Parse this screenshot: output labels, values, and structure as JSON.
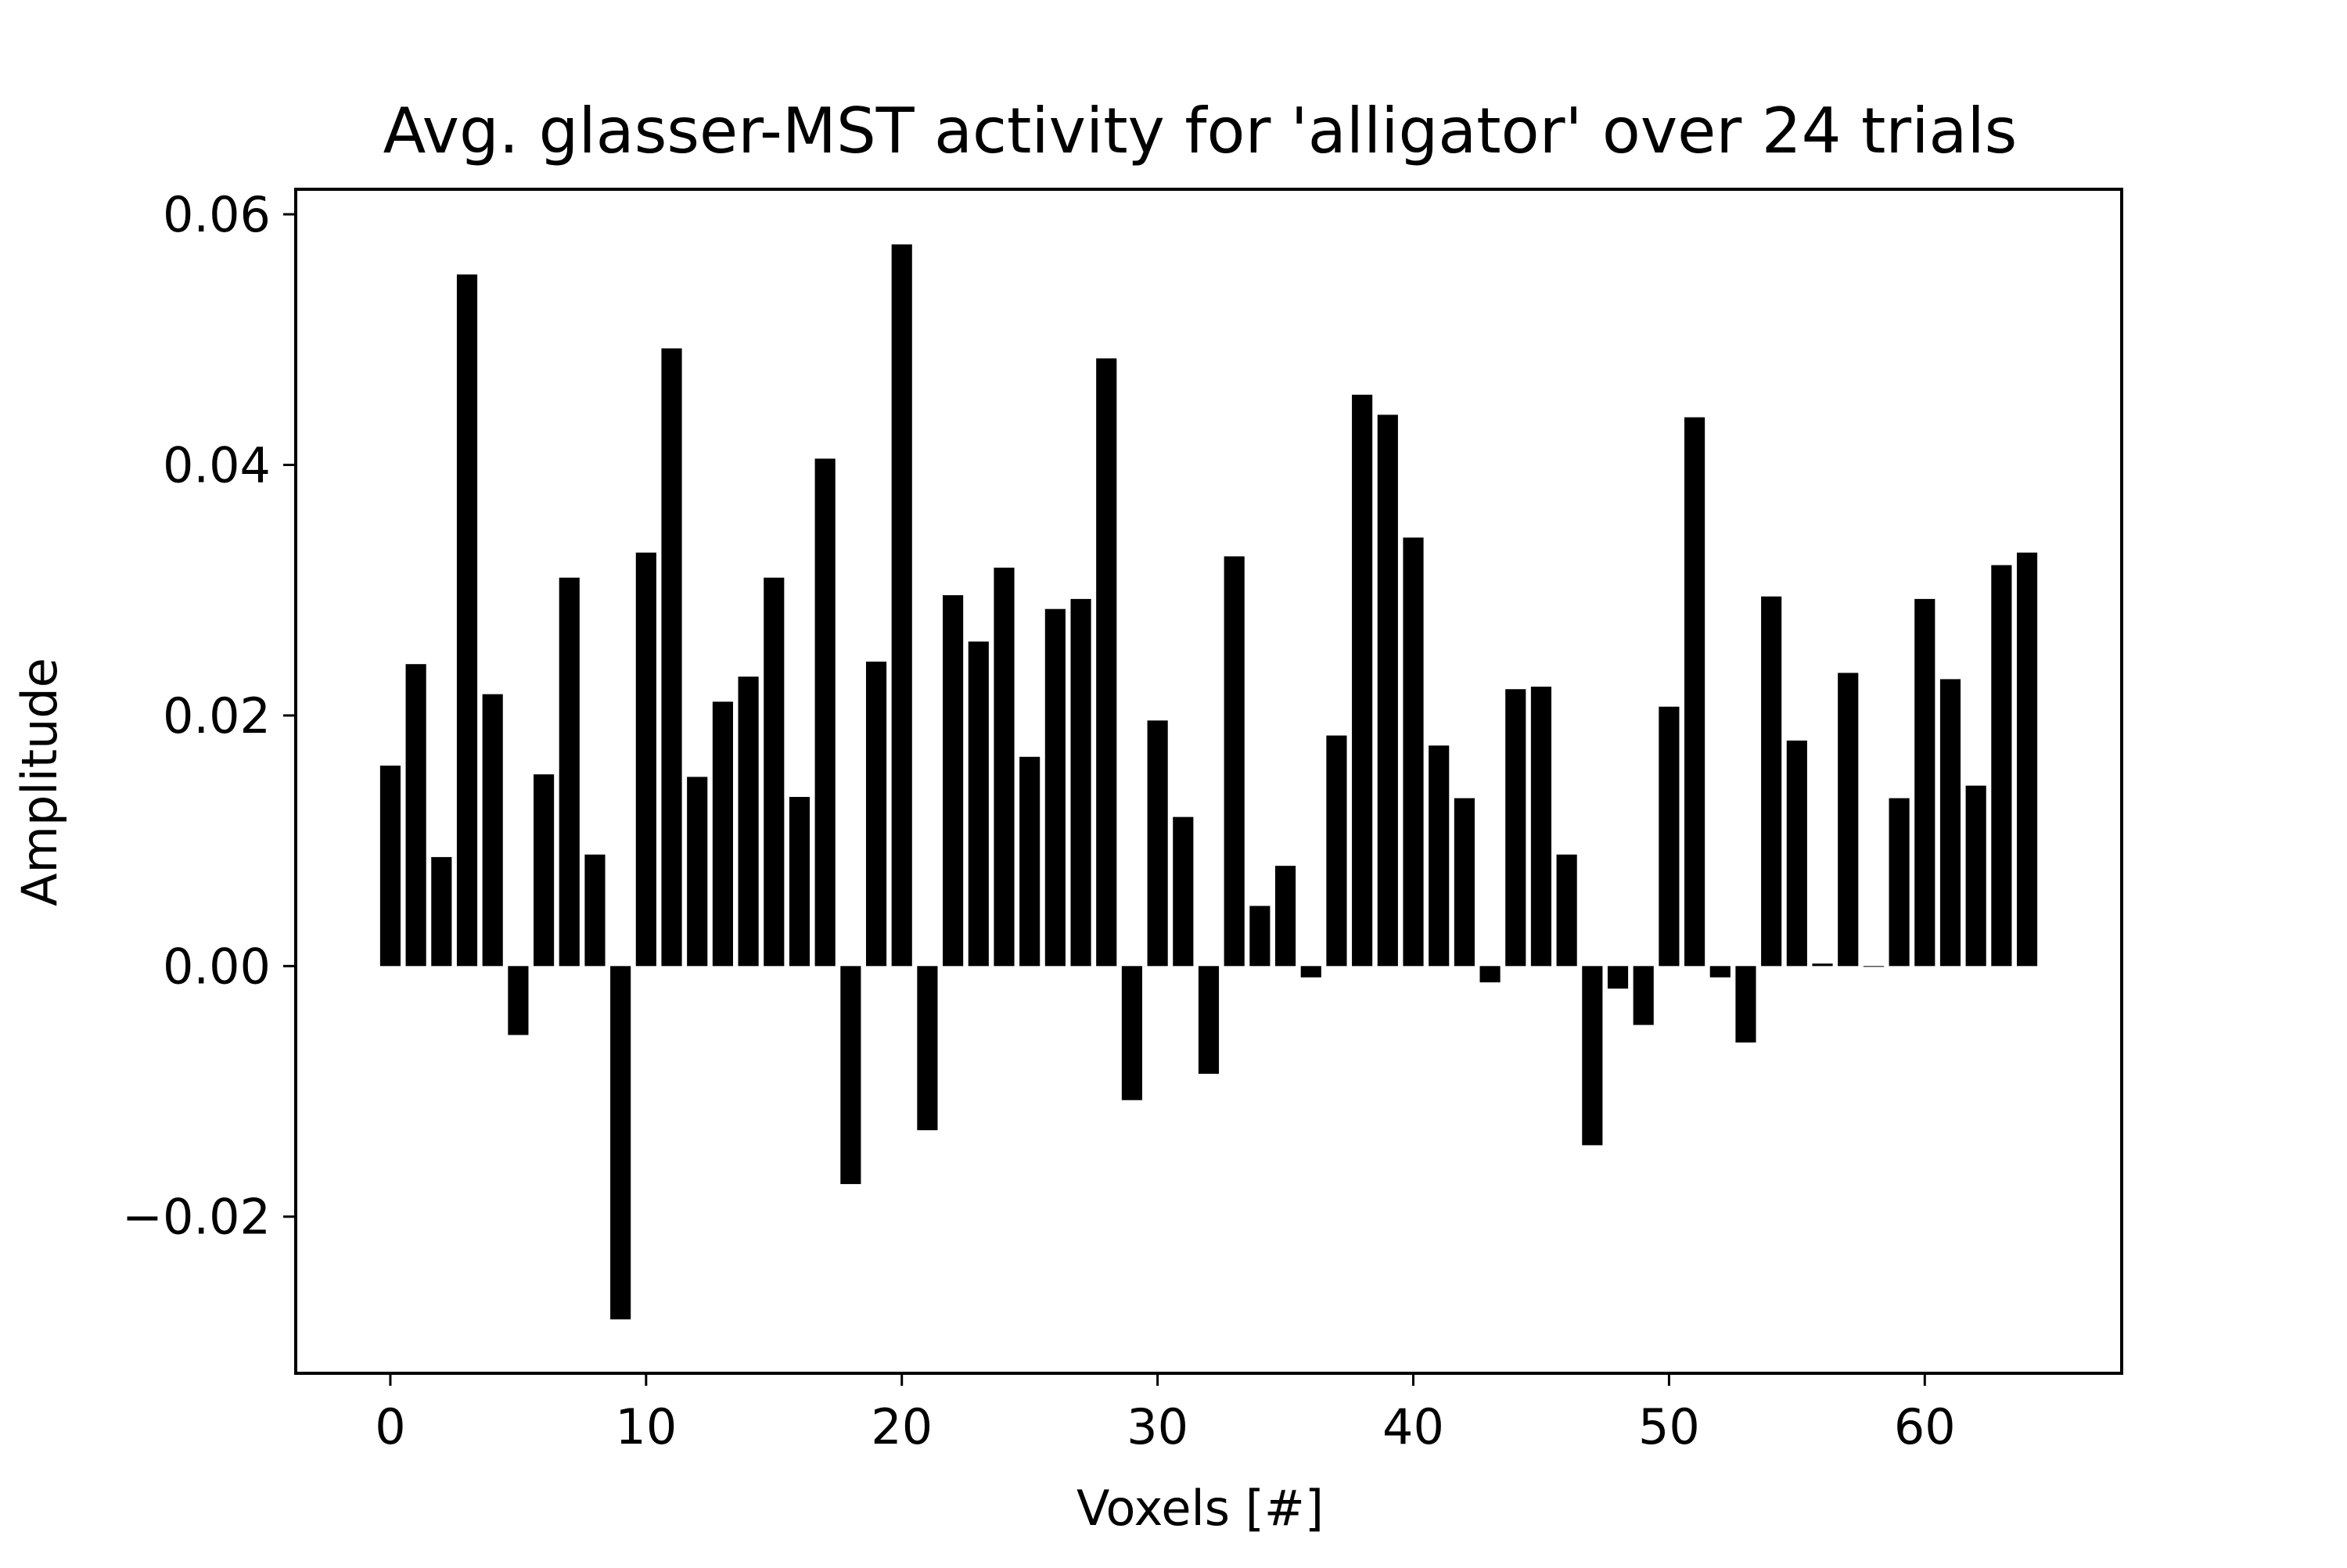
{
  "colors": {
    "bar": "#000000",
    "axes": "#000000",
    "background": "#ffffff"
  },
  "chart_data": {
    "type": "bar",
    "title": "Avg. glasser-MST activity for 'alligator' over 24 trials",
    "xlabel": "Voxels [#]",
    "ylabel": "Amplitude",
    "xlim": [
      -3.7,
      67.7
    ],
    "ylim": [
      -0.0325,
      0.062
    ],
    "grid": false,
    "legend": "none",
    "xticks": [
      0,
      10,
      20,
      30,
      40,
      50,
      60
    ],
    "xtick_labels": [
      "0",
      "10",
      "20",
      "30",
      "40",
      "50",
      "60"
    ],
    "yticks": [
      -0.02,
      0.0,
      0.02,
      0.04,
      0.06
    ],
    "ytick_labels": [
      "−0.02",
      "0.00",
      "0.02",
      "0.04",
      "0.06"
    ],
    "x": [
      0,
      1,
      2,
      3,
      4,
      5,
      6,
      7,
      8,
      9,
      10,
      11,
      12,
      13,
      14,
      15,
      16,
      17,
      18,
      19,
      20,
      21,
      22,
      23,
      24,
      25,
      26,
      27,
      28,
      29,
      30,
      31,
      32,
      33,
      34,
      35,
      36,
      37,
      38,
      39,
      40,
      41,
      42,
      43,
      44,
      45,
      46,
      47,
      48,
      49,
      50,
      51,
      52,
      53,
      54,
      55,
      56,
      57,
      58,
      59,
      60,
      61,
      62,
      63,
      64
    ],
    "values": [
      0.016,
      0.0241,
      0.0087,
      0.0552,
      0.0217,
      -0.0055,
      0.0153,
      0.031,
      0.0089,
      -0.0282,
      0.033,
      0.0493,
      0.0151,
      0.0211,
      0.0231,
      0.031,
      0.0135,
      0.0405,
      -0.0174,
      0.0243,
      0.0576,
      -0.0131,
      0.0296,
      0.0259,
      0.0318,
      0.0167,
      0.0285,
      0.0293,
      0.0485,
      -0.0107,
      0.0196,
      0.0119,
      -0.0086,
      0.0327,
      0.0048,
      0.008,
      -0.0009,
      0.0184,
      0.0456,
      0.044,
      0.0342,
      0.0176,
      0.0134,
      -0.0013,
      0.0221,
      0.0223,
      0.0089,
      -0.0143,
      -0.0018,
      -0.0047,
      0.0207,
      0.0438,
      -0.0009,
      -0.0061,
      0.0295,
      0.018,
      0.0002,
      0.0234,
      0.0,
      0.0134,
      0.0293,
      0.0229,
      0.0144,
      0.032,
      0.033
    ]
  }
}
